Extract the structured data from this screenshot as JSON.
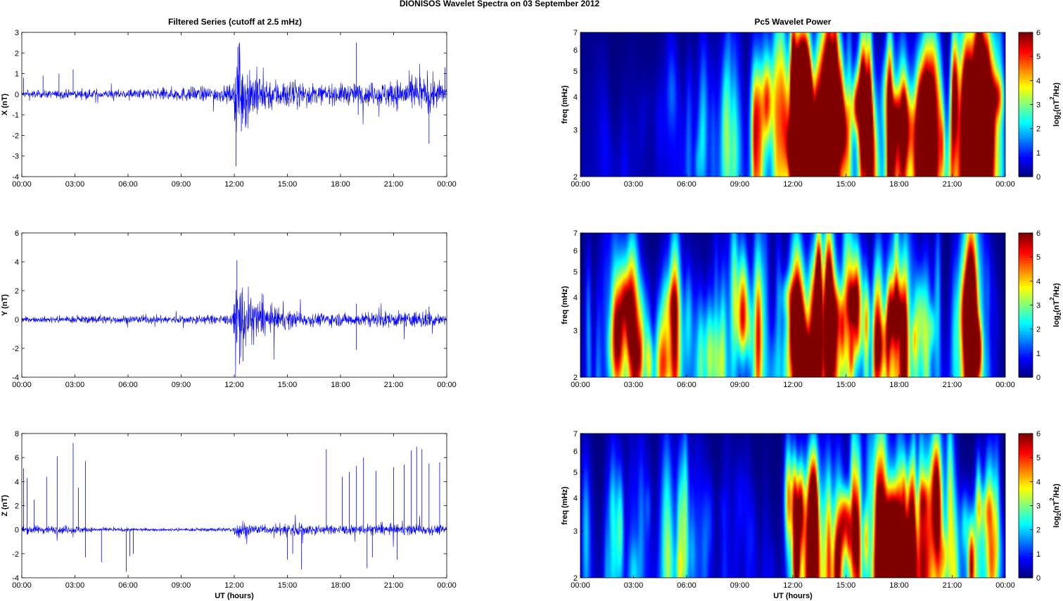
{
  "figure": {
    "title": "DIONISOS Wavelet Spectra on 03 September 2012",
    "left_title": "Filtered Series (cutoff at 2.5 mHz)",
    "right_title": "Pc5 Wavelet Power"
  },
  "colors": {
    "trace": "#0000ff",
    "background_low": "#00008f",
    "axis": "#000000"
  },
  "chart_data": [
    {
      "type": "line",
      "panel": "X",
      "ylabel": "X (nT)",
      "ylim": [
        -4,
        3
      ],
      "yticks": [
        "3",
        "2",
        "1",
        "0",
        "-1",
        "-2",
        "-3",
        "-4"
      ],
      "xticks": [
        "00:00",
        "03:00",
        "06:00",
        "09:00",
        "12:00",
        "15:00",
        "18:00",
        "21:00",
        "00:00"
      ],
      "xlim_hours": [
        0,
        24
      ],
      "xlabel": "",
      "envelope": [
        {
          "h": 0,
          "a": 0.15
        },
        {
          "h": 6,
          "a": 0.2
        },
        {
          "h": 9,
          "a": 0.3
        },
        {
          "h": 11.9,
          "a": 0.35
        },
        {
          "h": 12.1,
          "a": 1.8
        },
        {
          "h": 13,
          "a": 1.2
        },
        {
          "h": 14,
          "a": 0.7
        },
        {
          "h": 17,
          "a": 0.4
        },
        {
          "h": 20,
          "a": 0.5
        },
        {
          "h": 23,
          "a": 0.8
        },
        {
          "h": 24,
          "a": 0.4
        }
      ],
      "spikes": [
        {
          "h": 0.1,
          "v": 0.8
        },
        {
          "h": 1.2,
          "v": 0.9
        },
        {
          "h": 2.1,
          "v": 1.0
        },
        {
          "h": 2.9,
          "v": 1.2
        },
        {
          "h": 12.2,
          "v": 2.3
        },
        {
          "h": 12.1,
          "v": -3.5
        },
        {
          "h": 12.4,
          "v": -1.8
        },
        {
          "h": 18.9,
          "v": 2.5
        },
        {
          "h": 19.0,
          "v": -1.0
        },
        {
          "h": 23.0,
          "v": -2.4
        },
        {
          "h": 23.9,
          "v": 1.3
        }
      ]
    },
    {
      "type": "line",
      "panel": "Y",
      "ylabel": "Y (nT)",
      "ylim": [
        -4,
        6
      ],
      "yticks": [
        "6",
        "4",
        "2",
        "0",
        "-2",
        "-4"
      ],
      "xticks": [
        "00:00",
        "03:00",
        "06:00",
        "09:00",
        "12:00",
        "15:00",
        "18:00",
        "21:00",
        "00:00"
      ],
      "xlim_hours": [
        0,
        24
      ],
      "xlabel": "",
      "envelope": [
        {
          "h": 0,
          "a": 0.15
        },
        {
          "h": 4,
          "a": 0.25
        },
        {
          "h": 9,
          "a": 0.25
        },
        {
          "h": 11.9,
          "a": 0.3
        },
        {
          "h": 12.1,
          "a": 2.8
        },
        {
          "h": 13,
          "a": 1.5
        },
        {
          "h": 14,
          "a": 0.8
        },
        {
          "h": 16,
          "a": 0.4
        },
        {
          "h": 19,
          "a": 0.4
        },
        {
          "h": 22,
          "a": 0.5
        },
        {
          "h": 23,
          "a": 0.6
        },
        {
          "h": 24,
          "a": 0.2
        }
      ],
      "spikes": [
        {
          "h": 12.15,
          "v": 4.1
        },
        {
          "h": 12.3,
          "v": -3.1
        },
        {
          "h": 12.5,
          "v": -2.9
        },
        {
          "h": 18.9,
          "v": 1.1
        },
        {
          "h": 18.9,
          "v": -2.1
        },
        {
          "h": 23.0,
          "v": 0.9
        }
      ]
    },
    {
      "type": "line",
      "panel": "Z",
      "ylabel": "Z (nT)",
      "ylim": [
        -4,
        8
      ],
      "yticks": [
        "8",
        "6",
        "4",
        "2",
        "0",
        "-2",
        "-4"
      ],
      "xticks": [
        "00:00",
        "03:00",
        "06:00",
        "09:00",
        "12:00",
        "15:00",
        "18:00",
        "21:00",
        "00:00"
      ],
      "xlim_hours": [
        0,
        24
      ],
      "xlabel": "UT (hours)",
      "envelope": [
        {
          "h": 0,
          "a": 0.3
        },
        {
          "h": 3,
          "a": 0.3
        },
        {
          "h": 4,
          "a": 0.15
        },
        {
          "h": 8,
          "a": 0.1
        },
        {
          "h": 11.9,
          "a": 0.15
        },
        {
          "h": 12.2,
          "a": 0.8
        },
        {
          "h": 13,
          "a": 0.4
        },
        {
          "h": 14,
          "a": 0.25
        },
        {
          "h": 15,
          "a": 0.6
        },
        {
          "h": 17,
          "a": 0.3
        },
        {
          "h": 20,
          "a": 0.4
        },
        {
          "h": 24,
          "a": 0.35
        }
      ],
      "spikes": [
        {
          "h": 0.1,
          "v": 5.1
        },
        {
          "h": 0.3,
          "v": 4.3
        },
        {
          "h": 0.7,
          "v": 2.5
        },
        {
          "h": 1.4,
          "v": 4.4
        },
        {
          "h": 2.0,
          "v": 6.1
        },
        {
          "h": 2.9,
          "v": 7.2
        },
        {
          "h": 3.2,
          "v": 3.5
        },
        {
          "h": 3.6,
          "v": 5.7
        },
        {
          "h": 3.6,
          "v": -2.3
        },
        {
          "h": 4.5,
          "v": -2.7
        },
        {
          "h": 5.9,
          "v": -3.5
        },
        {
          "h": 6.1,
          "v": -2.2
        },
        {
          "h": 6.3,
          "v": -2.0
        },
        {
          "h": 15.0,
          "v": -2.5
        },
        {
          "h": 15.3,
          "v": -2.0
        },
        {
          "h": 15.8,
          "v": -3.3
        },
        {
          "h": 17.2,
          "v": 6.7
        },
        {
          "h": 18.1,
          "v": 4.4
        },
        {
          "h": 18.5,
          "v": 4.8
        },
        {
          "h": 18.9,
          "v": 5.3
        },
        {
          "h": 19.3,
          "v": 6.0
        },
        {
          "h": 19.5,
          "v": -3.2
        },
        {
          "h": 19.8,
          "v": -2.3
        },
        {
          "h": 20.0,
          "v": 4.9
        },
        {
          "h": 21.0,
          "v": 5.2
        },
        {
          "h": 21.2,
          "v": -2.5
        },
        {
          "h": 21.6,
          "v": 5.4
        },
        {
          "h": 22.0,
          "v": 6.6
        },
        {
          "h": 22.3,
          "v": 6.9
        },
        {
          "h": 22.6,
          "v": 6.7
        },
        {
          "h": 23.0,
          "v": 5.5
        },
        {
          "h": 23.6,
          "v": 5.6
        }
      ]
    },
    {
      "type": "heatmap",
      "panel": "X-power",
      "ylabel": "freq (mHz)",
      "yscale": "log",
      "ylim": [
        2,
        7
      ],
      "yticks": [
        "7",
        "6",
        "5",
        "4",
        "3",
        "2"
      ],
      "xticks": [
        "00:00",
        "03:00",
        "06:00",
        "09:00",
        "12:00",
        "15:00",
        "18:00",
        "21:00",
        "00:00"
      ],
      "xlabel": "",
      "colorbar": {
        "label": "log2(nT^2/Hz)",
        "label_main": "log",
        "label_sub": "2",
        "label_rest_a": "(nT",
        "label_sup": "2",
        "label_rest_b": "/Hz)",
        "range": [
          0,
          6
        ],
        "ticks": [
          "6",
          "5",
          "4",
          "3",
          "2",
          "1",
          "0"
        ]
      },
      "activity": [
        {
          "h": 0,
          "a": 0.5
        },
        {
          "h": 3,
          "a": 0.6
        },
        {
          "h": 6,
          "a": 1.2
        },
        {
          "h": 9,
          "a": 2.3
        },
        {
          "h": 11.6,
          "a": 2.7
        },
        {
          "h": 11.9,
          "a": 6.5
        },
        {
          "h": 13,
          "a": 6.0
        },
        {
          "h": 14.5,
          "a": 4.8
        },
        {
          "h": 17.5,
          "a": 4.8
        },
        {
          "h": 20,
          "a": 4.0
        },
        {
          "h": 21.5,
          "a": 4.5
        },
        {
          "h": 22,
          "a": 6.2
        },
        {
          "h": 23.5,
          "a": 5.0
        },
        {
          "h": 24,
          "a": 1.0
        }
      ]
    },
    {
      "type": "heatmap",
      "panel": "Y-power",
      "ylabel": "freq (mHz)",
      "yscale": "log",
      "ylim": [
        2,
        7
      ],
      "yticks": [
        "7",
        "6",
        "5",
        "4",
        "3",
        "2"
      ],
      "xticks": [
        "00:00",
        "03:00",
        "06:00",
        "09:00",
        "12:00",
        "15:00",
        "18:00",
        "21:00",
        "00:00"
      ],
      "xlabel": "",
      "colorbar": {
        "label": "log2(nT^2/Hz)",
        "label_main": "log",
        "label_sub": "2",
        "label_rest_a": "(nT",
        "label_sup": "2",
        "label_rest_b": "/Hz)",
        "range": [
          0,
          6
        ],
        "ticks": [
          "6",
          "5",
          "4",
          "3",
          "2",
          "1",
          "0"
        ]
      },
      "activity": [
        {
          "h": 0,
          "a": 1.5
        },
        {
          "h": 3,
          "a": 2.8
        },
        {
          "h": 4,
          "a": 3.2
        },
        {
          "h": 6,
          "a": 2.8
        },
        {
          "h": 9,
          "a": 2.8
        },
        {
          "h": 11.6,
          "a": 3.0
        },
        {
          "h": 11.9,
          "a": 6.5
        },
        {
          "h": 13,
          "a": 6.2
        },
        {
          "h": 14.5,
          "a": 4.5
        },
        {
          "h": 17.5,
          "a": 3.5
        },
        {
          "h": 18.5,
          "a": 4.8
        },
        {
          "h": 19.5,
          "a": 2.5
        },
        {
          "h": 21,
          "a": 2.5
        },
        {
          "h": 22.3,
          "a": 4.8
        },
        {
          "h": 23.2,
          "a": 1.0
        },
        {
          "h": 24,
          "a": 0.3
        }
      ]
    },
    {
      "type": "heatmap",
      "panel": "Z-power",
      "ylabel": "freq (mHz)",
      "yscale": "log",
      "ylim": [
        2,
        7
      ],
      "yticks": [
        "7",
        "6",
        "5",
        "4",
        "3",
        "2"
      ],
      "xticks": [
        "00:00",
        "03:00",
        "06:00",
        "09:00",
        "12:00",
        "15:00",
        "18:00",
        "21:00",
        "00:00"
      ],
      "xlabel": "UT (hours)",
      "colorbar": {
        "label": "log2(nT^2/Hz)",
        "label_main": "log",
        "label_sub": "2",
        "label_rest_a": "(nT",
        "label_sup": "2",
        "label_rest_b": "/Hz)",
        "range": [
          0,
          6
        ],
        "ticks": [
          "6",
          "5",
          "4",
          "3",
          "2",
          "1",
          "0"
        ]
      },
      "activity": [
        {
          "h": 0,
          "a": 1.0
        },
        {
          "h": 3,
          "a": 1.8
        },
        {
          "h": 5.5,
          "a": 1.6
        },
        {
          "h": 5.8,
          "a": 3.5
        },
        {
          "h": 6.2,
          "a": 1.2
        },
        {
          "h": 9,
          "a": 0.8
        },
        {
          "h": 11.6,
          "a": 1.0
        },
        {
          "h": 11.9,
          "a": 5.8
        },
        {
          "h": 13,
          "a": 5.5
        },
        {
          "h": 15,
          "a": 4.6
        },
        {
          "h": 17,
          "a": 3.8
        },
        {
          "h": 19,
          "a": 4.6
        },
        {
          "h": 21,
          "a": 4.5
        },
        {
          "h": 22.5,
          "a": 4.0
        },
        {
          "h": 24,
          "a": 1.5
        }
      ]
    }
  ]
}
